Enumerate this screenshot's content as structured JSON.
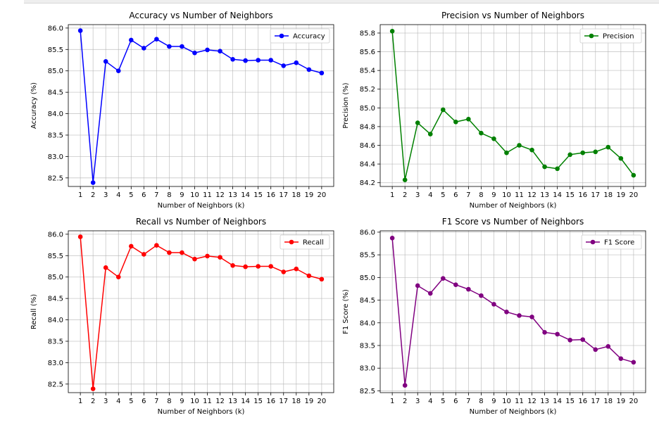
{
  "chart_data": [
    {
      "type": "line",
      "title": "Accuracy vs Number of Neighbors",
      "xlabel": "Number of Neighbors (k)",
      "ylabel": "Accuracy (%)",
      "x": [
        1,
        2,
        3,
        4,
        5,
        6,
        7,
        8,
        9,
        10,
        11,
        12,
        13,
        14,
        15,
        16,
        17,
        18,
        19,
        20
      ],
      "ylim": [
        82.3,
        86.08
      ],
      "yticks": [
        82.5,
        83.0,
        83.5,
        84.0,
        84.5,
        85.0,
        85.5,
        86.0
      ],
      "ytick_labels": [
        "82.5",
        "83.0",
        "83.5",
        "84.0",
        "84.5",
        "85.0",
        "85.5",
        "86.0"
      ],
      "grid": true,
      "legend": "upper right",
      "series": [
        {
          "name": "Accuracy",
          "color": "#0000ff",
          "values": [
            85.94,
            82.39,
            85.22,
            85.0,
            85.72,
            85.53,
            85.74,
            85.57,
            85.57,
            85.42,
            85.49,
            85.46,
            85.27,
            85.24,
            85.25,
            85.25,
            85.12,
            85.19,
            85.03,
            84.95
          ]
        }
      ]
    },
    {
      "type": "line",
      "title": "Precision vs Number of Neighbors",
      "xlabel": "Number of Neighbors (k)",
      "ylabel": "Precision (%)",
      "x": [
        1,
        2,
        3,
        4,
        5,
        6,
        7,
        8,
        9,
        10,
        11,
        12,
        13,
        14,
        15,
        16,
        17,
        18,
        19,
        20
      ],
      "ylim": [
        84.16,
        85.89
      ],
      "yticks": [
        84.2,
        84.4,
        84.6,
        84.8,
        85.0,
        85.2,
        85.4,
        85.6,
        85.8
      ],
      "ytick_labels": [
        "84.2",
        "84.4",
        "84.6",
        "84.8",
        "85.0",
        "85.2",
        "85.4",
        "85.6",
        "85.8"
      ],
      "grid": true,
      "legend": "upper right",
      "series": [
        {
          "name": "Precision",
          "color": "#008000",
          "values": [
            85.82,
            84.23,
            84.84,
            84.72,
            84.98,
            84.85,
            84.88,
            84.73,
            84.67,
            84.52,
            84.6,
            84.55,
            84.37,
            84.35,
            84.5,
            84.52,
            84.53,
            84.58,
            84.46,
            84.28
          ]
        }
      ]
    },
    {
      "type": "line",
      "title": "Recall vs Number of Neighbors",
      "xlabel": "Number of Neighbors (k)",
      "ylabel": "Recall (%)",
      "x": [
        1,
        2,
        3,
        4,
        5,
        6,
        7,
        8,
        9,
        10,
        11,
        12,
        13,
        14,
        15,
        16,
        17,
        18,
        19,
        20
      ],
      "ylim": [
        82.3,
        86.08
      ],
      "yticks": [
        82.5,
        83.0,
        83.5,
        84.0,
        84.5,
        85.0,
        85.5,
        86.0
      ],
      "ytick_labels": [
        "82.5",
        "83.0",
        "83.5",
        "84.0",
        "84.5",
        "85.0",
        "85.5",
        "86.0"
      ],
      "grid": true,
      "legend": "upper right",
      "series": [
        {
          "name": "Recall",
          "color": "#ff0000",
          "values": [
            85.94,
            82.39,
            85.22,
            85.0,
            85.72,
            85.53,
            85.74,
            85.57,
            85.57,
            85.42,
            85.49,
            85.46,
            85.27,
            85.24,
            85.25,
            85.25,
            85.12,
            85.19,
            85.03,
            84.95
          ]
        }
      ]
    },
    {
      "type": "line",
      "title": "F1 Score vs Number of Neighbors",
      "xlabel": "Number of Neighbors (k)",
      "ylabel": "F1 Score (%)",
      "x": [
        1,
        2,
        3,
        4,
        5,
        6,
        7,
        8,
        9,
        10,
        11,
        12,
        13,
        14,
        15,
        16,
        17,
        18,
        19,
        20
      ],
      "ylim": [
        82.46,
        86.03
      ],
      "yticks": [
        82.5,
        83.0,
        83.5,
        84.0,
        84.5,
        85.0,
        85.5,
        86.0
      ],
      "ytick_labels": [
        "82.5",
        "83.0",
        "83.5",
        "84.0",
        "84.5",
        "85.0",
        "85.5",
        "86.0"
      ],
      "grid": true,
      "legend": "upper right",
      "series": [
        {
          "name": "F1 Score",
          "color": "#800080",
          "values": [
            85.87,
            82.62,
            84.82,
            84.65,
            84.98,
            84.84,
            84.74,
            84.6,
            84.41,
            84.24,
            84.16,
            84.13,
            83.79,
            83.75,
            83.62,
            83.63,
            83.41,
            83.48,
            83.21,
            83.13
          ]
        }
      ]
    }
  ]
}
